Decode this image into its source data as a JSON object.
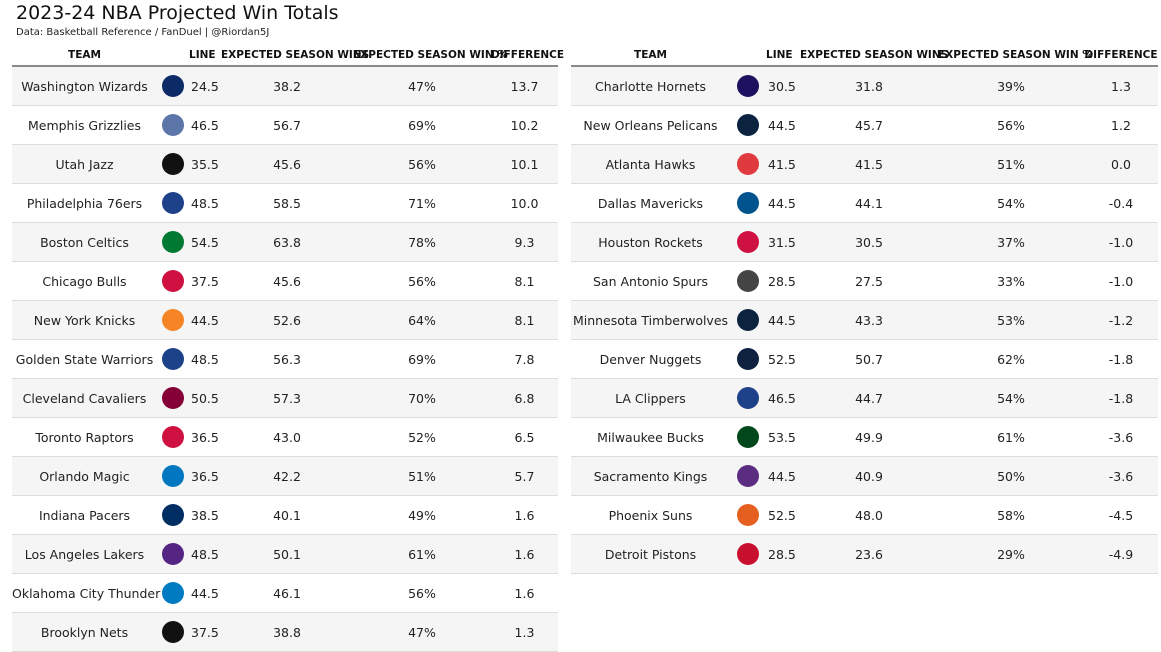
{
  "title": "2023-24 NBA Projected Win Totals",
  "subtitle": "Data: Basketball Reference / FanDuel | @Riordan5J",
  "columns": {
    "team": "TEAM",
    "line": "LINE",
    "wins": "EXPECTED SEASON WINS",
    "pct": "EXPECTED SEASON WIN %",
    "diff": "DIFFERENCE"
  },
  "chart_data": {
    "type": "table",
    "title": "2023-24 NBA Projected Win Totals",
    "columns": [
      "TEAM",
      "LINE",
      "EXPECTED SEASON WINS",
      "EXPECTED SEASON WIN %",
      "DIFFERENCE"
    ],
    "left": [
      {
        "team": "Washington Wizards",
        "logo": "wizards-logo",
        "color": "#0b2a66",
        "line": "24.5",
        "wins": "38.2",
        "pct": "47%",
        "diff": "13.7"
      },
      {
        "team": "Memphis Grizzlies",
        "logo": "grizzlies-logo",
        "color": "#5d76a9",
        "line": "46.5",
        "wins": "56.7",
        "pct": "69%",
        "diff": "10.2"
      },
      {
        "team": "Utah Jazz",
        "logo": "jazz-logo",
        "color": "#111111",
        "line": "35.5",
        "wins": "45.6",
        "pct": "56%",
        "diff": "10.1"
      },
      {
        "team": "Philadelphia 76ers",
        "logo": "76ers-logo",
        "color": "#1d428a",
        "line": "48.5",
        "wins": "58.5",
        "pct": "71%",
        "diff": "10.0"
      },
      {
        "team": "Boston Celtics",
        "logo": "celtics-logo",
        "color": "#007a33",
        "line": "54.5",
        "wins": "63.8",
        "pct": "78%",
        "diff": "9.3"
      },
      {
        "team": "Chicago Bulls",
        "logo": "bulls-logo",
        "color": "#ce1141",
        "line": "37.5",
        "wins": "45.6",
        "pct": "56%",
        "diff": "8.1"
      },
      {
        "team": "New York Knicks",
        "logo": "knicks-logo",
        "color": "#f58426",
        "line": "44.5",
        "wins": "52.6",
        "pct": "64%",
        "diff": "8.1"
      },
      {
        "team": "Golden State Warriors",
        "logo": "warriors-logo",
        "color": "#1d428a",
        "line": "48.5",
        "wins": "56.3",
        "pct": "69%",
        "diff": "7.8"
      },
      {
        "team": "Cleveland Cavaliers",
        "logo": "cavaliers-logo",
        "color": "#860038",
        "line": "50.5",
        "wins": "57.3",
        "pct": "70%",
        "diff": "6.8"
      },
      {
        "team": "Toronto Raptors",
        "logo": "raptors-logo",
        "color": "#ce1141",
        "line": "36.5",
        "wins": "43.0",
        "pct": "52%",
        "diff": "6.5"
      },
      {
        "team": "Orlando Magic",
        "logo": "magic-logo",
        "color": "#0077c0",
        "line": "36.5",
        "wins": "42.2",
        "pct": "51%",
        "diff": "5.7"
      },
      {
        "team": "Indiana Pacers",
        "logo": "pacers-logo",
        "color": "#002d62",
        "line": "38.5",
        "wins": "40.1",
        "pct": "49%",
        "diff": "1.6"
      },
      {
        "team": "Los Angeles Lakers",
        "logo": "lakers-logo",
        "color": "#552583",
        "line": "48.5",
        "wins": "50.1",
        "pct": "61%",
        "diff": "1.6"
      },
      {
        "team": "Oklahoma City Thunder",
        "logo": "thunder-logo",
        "color": "#007ac1",
        "line": "44.5",
        "wins": "46.1",
        "pct": "56%",
        "diff": "1.6"
      },
      {
        "team": "Brooklyn Nets",
        "logo": "nets-logo",
        "color": "#111111",
        "line": "37.5",
        "wins": "38.8",
        "pct": "47%",
        "diff": "1.3"
      }
    ],
    "right": [
      {
        "team": "Charlotte Hornets",
        "logo": "hornets-logo",
        "color": "#1d1160",
        "line": "30.5",
        "wins": "31.8",
        "pct": "39%",
        "diff": "1.3"
      },
      {
        "team": "New Orleans Pelicans",
        "logo": "pelicans-logo",
        "color": "#0c2340",
        "line": "44.5",
        "wins": "45.7",
        "pct": "56%",
        "diff": "1.2"
      },
      {
        "team": "Atlanta Hawks",
        "logo": "hawks-logo",
        "color": "#e03a3e",
        "line": "41.5",
        "wins": "41.5",
        "pct": "51%",
        "diff": "0.0"
      },
      {
        "team": "Dallas Mavericks",
        "logo": "mavericks-logo",
        "color": "#00538c",
        "line": "44.5",
        "wins": "44.1",
        "pct": "54%",
        "diff": "-0.4"
      },
      {
        "team": "Houston Rockets",
        "logo": "rockets-logo",
        "color": "#ce1141",
        "line": "31.5",
        "wins": "30.5",
        "pct": "37%",
        "diff": "-1.0"
      },
      {
        "team": "San Antonio Spurs",
        "logo": "spurs-logo",
        "color": "#444444",
        "line": "28.5",
        "wins": "27.5",
        "pct": "33%",
        "diff": "-1.0"
      },
      {
        "team": "Minnesota Timberwolves",
        "logo": "timberwolves-logo",
        "color": "#0c2340",
        "line": "44.5",
        "wins": "43.3",
        "pct": "53%",
        "diff": "-1.2"
      },
      {
        "team": "Denver Nuggets",
        "logo": "nuggets-logo",
        "color": "#0e2240",
        "line": "52.5",
        "wins": "50.7",
        "pct": "62%",
        "diff": "-1.8"
      },
      {
        "team": "LA Clippers",
        "logo": "clippers-logo",
        "color": "#1d428a",
        "line": "46.5",
        "wins": "44.7",
        "pct": "54%",
        "diff": "-1.8"
      },
      {
        "team": "Milwaukee Bucks",
        "logo": "bucks-logo",
        "color": "#00471b",
        "line": "53.5",
        "wins": "49.9",
        "pct": "61%",
        "diff": "-3.6"
      },
      {
        "team": "Sacramento Kings",
        "logo": "kings-logo",
        "color": "#5a2d81",
        "line": "44.5",
        "wins": "40.9",
        "pct": "50%",
        "diff": "-3.6"
      },
      {
        "team": "Phoenix Suns",
        "logo": "suns-logo",
        "color": "#e56020",
        "line": "52.5",
        "wins": "48.0",
        "pct": "58%",
        "diff": "-4.5"
      },
      {
        "team": "Detroit Pistons",
        "logo": "pistons-logo",
        "color": "#c8102e",
        "line": "28.5",
        "wins": "23.6",
        "pct": "29%",
        "diff": "-4.9"
      }
    ]
  }
}
